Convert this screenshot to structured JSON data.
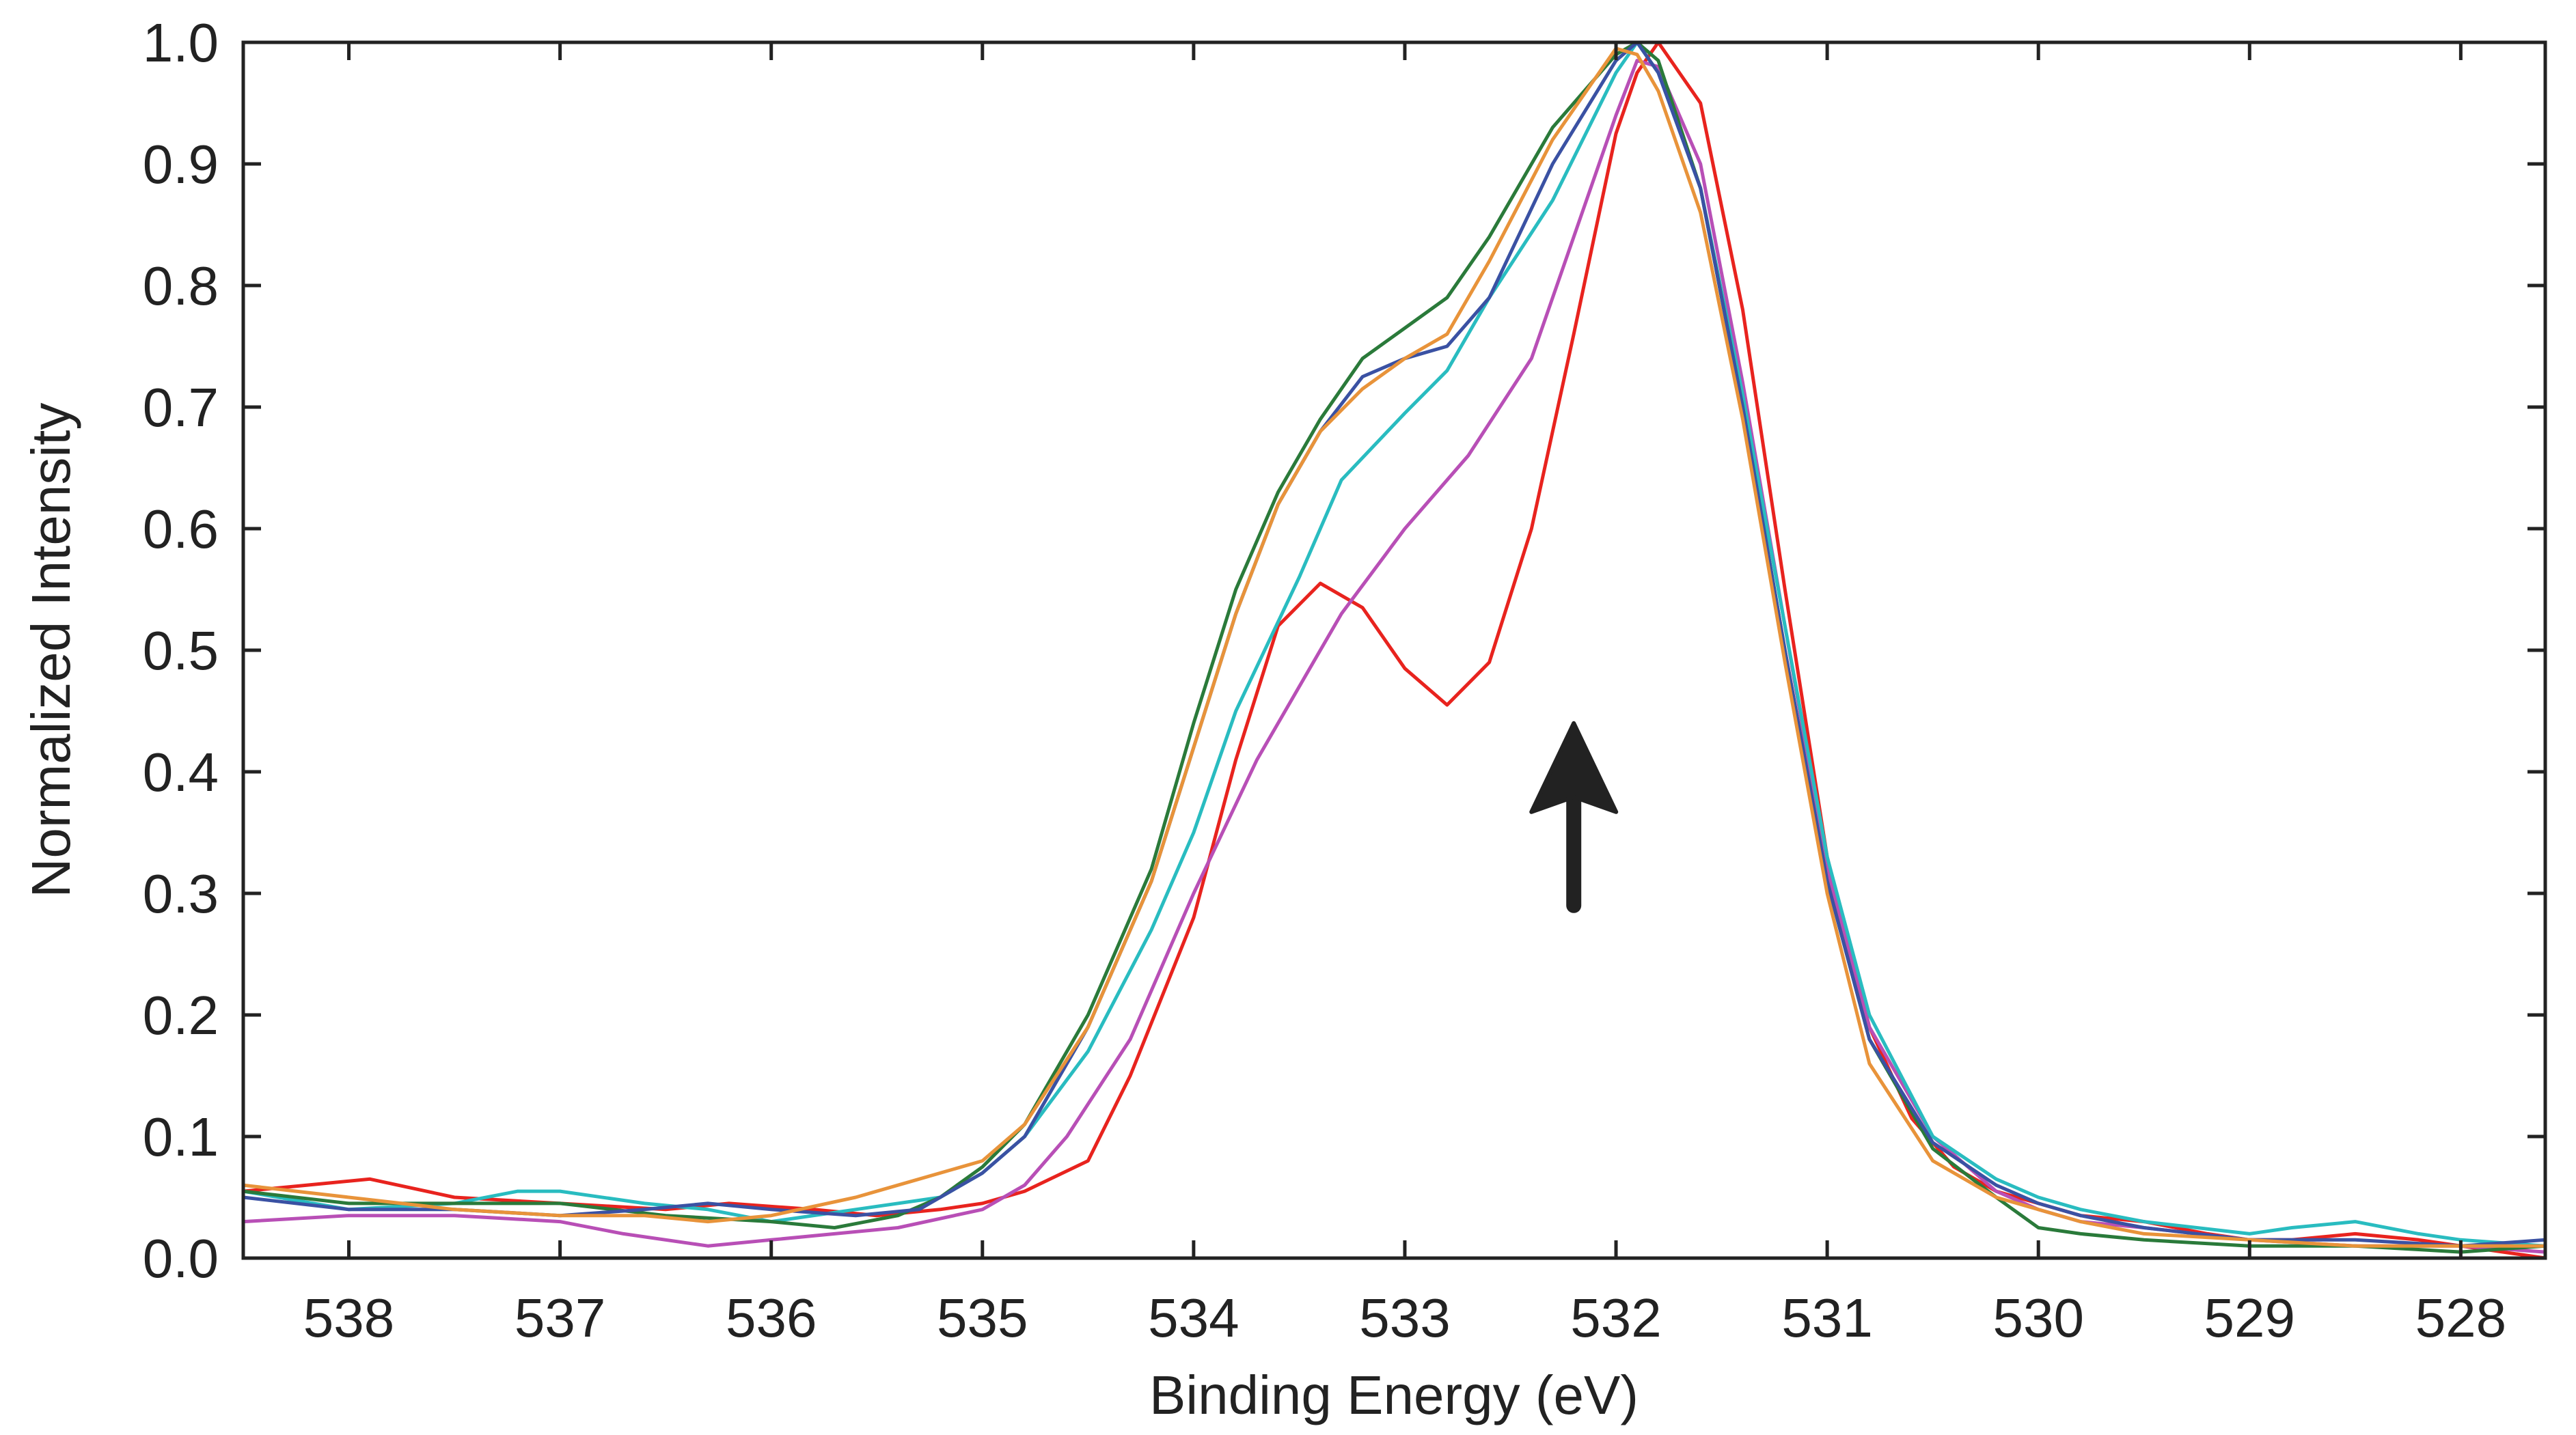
{
  "chart_data": {
    "type": "line",
    "title": "",
    "xlabel": "Binding Energy (eV)",
    "ylabel": "Normalized Intensity",
    "xlim": [
      538.5,
      527.6
    ],
    "ylim": [
      0.0,
      1.0
    ],
    "x_reversed": true,
    "grid": false,
    "legend": "none",
    "xticks": [
      538,
      537,
      536,
      535,
      534,
      533,
      532,
      531,
      530,
      529,
      528
    ],
    "xtick_labels": [
      "538",
      "537",
      "536",
      "535",
      "534",
      "533",
      "532",
      "531",
      "530",
      "529",
      "528"
    ],
    "yticks": [
      0.0,
      0.1,
      0.2,
      0.3,
      0.4,
      0.5,
      0.6,
      0.7,
      0.8,
      0.9,
      1.0
    ],
    "ytick_labels": [
      "0.0",
      "0.1",
      "0.2",
      "0.3",
      "0.4",
      "0.5",
      "0.6",
      "0.7",
      "0.8",
      "0.9",
      "1.0"
    ],
    "annotations": [
      {
        "type": "arrow",
        "direction": "up",
        "x": 532.2,
        "y_start": 0.29,
        "y_end": 0.44,
        "color": "#222222"
      }
    ],
    "series": [
      {
        "name": "red",
        "color": "#e8231e",
        "x": [
          538.5,
          538.2,
          537.9,
          537.5,
          537.0,
          536.5,
          536.2,
          535.8,
          535.5,
          535.2,
          535.0,
          534.8,
          534.5,
          534.3,
          534.0,
          533.8,
          533.6,
          533.4,
          533.2,
          533.0,
          532.8,
          532.6,
          532.4,
          532.2,
          532.0,
          531.9,
          531.8,
          531.6,
          531.4,
          531.2,
          531.0,
          530.8,
          530.6,
          530.4,
          530.2,
          530.0,
          529.8,
          529.5,
          529.2,
          529.0,
          528.8,
          528.5,
          528.2,
          528.0,
          527.6
        ],
        "y": [
          0.055,
          0.06,
          0.065,
          0.05,
          0.045,
          0.04,
          0.045,
          0.04,
          0.035,
          0.04,
          0.045,
          0.055,
          0.08,
          0.15,
          0.28,
          0.41,
          0.52,
          0.555,
          0.535,
          0.485,
          0.455,
          0.49,
          0.6,
          0.76,
          0.925,
          0.975,
          1.0,
          0.95,
          0.78,
          0.55,
          0.33,
          0.19,
          0.115,
          0.075,
          0.055,
          0.045,
          0.035,
          0.03,
          0.02,
          0.015,
          0.015,
          0.02,
          0.015,
          0.01,
          0.0
        ]
      },
      {
        "name": "magenta",
        "color": "#b84fb6",
        "x": [
          538.5,
          538.0,
          537.5,
          537.0,
          536.7,
          536.3,
          536.0,
          535.7,
          535.4,
          535.0,
          534.8,
          534.6,
          534.3,
          534.0,
          533.7,
          533.5,
          533.3,
          533.0,
          532.7,
          532.4,
          532.2,
          532.0,
          531.9,
          531.8,
          531.6,
          531.4,
          531.2,
          531.0,
          530.8,
          530.5,
          530.2,
          530.0,
          529.8,
          529.5,
          529.0,
          528.5,
          528.0,
          527.6
        ],
        "y": [
          0.03,
          0.035,
          0.035,
          0.03,
          0.02,
          0.01,
          0.015,
          0.02,
          0.025,
          0.04,
          0.06,
          0.1,
          0.18,
          0.3,
          0.41,
          0.47,
          0.53,
          0.6,
          0.66,
          0.74,
          0.84,
          0.94,
          0.985,
          0.98,
          0.9,
          0.72,
          0.52,
          0.32,
          0.19,
          0.1,
          0.055,
          0.04,
          0.03,
          0.025,
          0.015,
          0.01,
          0.01,
          0.005
        ]
      },
      {
        "name": "cyan",
        "color": "#29bcc0",
        "x": [
          538.5,
          538.0,
          537.5,
          537.2,
          537.0,
          536.6,
          536.3,
          536.0,
          535.6,
          535.2,
          535.0,
          534.8,
          534.5,
          534.2,
          534.0,
          533.8,
          533.5,
          533.3,
          533.0,
          532.8,
          532.6,
          532.3,
          532.0,
          531.9,
          531.8,
          531.6,
          531.4,
          531.2,
          531.0,
          530.8,
          530.5,
          530.2,
          530.0,
          529.8,
          529.5,
          529.0,
          528.8,
          528.5,
          528.2,
          528.0,
          527.6
        ],
        "y": [
          0.055,
          0.04,
          0.045,
          0.055,
          0.055,
          0.045,
          0.04,
          0.03,
          0.04,
          0.05,
          0.07,
          0.1,
          0.17,
          0.27,
          0.35,
          0.45,
          0.56,
          0.64,
          0.695,
          0.73,
          0.79,
          0.87,
          0.975,
          1.0,
          0.975,
          0.88,
          0.71,
          0.52,
          0.33,
          0.2,
          0.1,
          0.065,
          0.05,
          0.04,
          0.03,
          0.02,
          0.025,
          0.03,
          0.02,
          0.015,
          0.01
        ]
      },
      {
        "name": "green",
        "color": "#2a7a3a",
        "x": [
          538.5,
          538.0,
          537.5,
          537.0,
          536.5,
          536.0,
          535.7,
          535.4,
          535.2,
          535.0,
          534.8,
          534.5,
          534.2,
          534.0,
          533.8,
          533.6,
          533.4,
          533.2,
          533.0,
          532.8,
          532.6,
          532.3,
          532.0,
          531.9,
          531.8,
          531.6,
          531.4,
          531.2,
          531.0,
          530.8,
          530.5,
          530.2,
          530.0,
          529.8,
          529.5,
          529.0,
          528.5,
          528.0,
          527.6
        ],
        "y": [
          0.055,
          0.045,
          0.045,
          0.045,
          0.035,
          0.03,
          0.025,
          0.035,
          0.05,
          0.075,
          0.11,
          0.2,
          0.32,
          0.44,
          0.55,
          0.63,
          0.69,
          0.74,
          0.765,
          0.79,
          0.84,
          0.93,
          0.99,
          1.0,
          0.985,
          0.88,
          0.7,
          0.5,
          0.31,
          0.18,
          0.09,
          0.05,
          0.025,
          0.02,
          0.015,
          0.01,
          0.01,
          0.005,
          0.01
        ]
      },
      {
        "name": "blue",
        "color": "#3a51a3",
        "x": [
          538.5,
          538.0,
          537.5,
          537.0,
          536.6,
          536.3,
          536.0,
          535.6,
          535.3,
          535.0,
          534.8,
          534.5,
          534.2,
          534.0,
          533.8,
          533.6,
          533.4,
          533.2,
          533.0,
          532.8,
          532.6,
          532.3,
          532.0,
          531.9,
          531.8,
          531.6,
          531.4,
          531.2,
          531.0,
          530.8,
          530.5,
          530.2,
          530.0,
          529.8,
          529.5,
          529.0,
          528.5,
          528.0,
          527.6
        ],
        "y": [
          0.05,
          0.04,
          0.04,
          0.035,
          0.04,
          0.045,
          0.04,
          0.035,
          0.04,
          0.07,
          0.1,
          0.19,
          0.31,
          0.42,
          0.53,
          0.62,
          0.68,
          0.725,
          0.74,
          0.75,
          0.79,
          0.9,
          0.985,
          1.0,
          0.975,
          0.88,
          0.7,
          0.5,
          0.31,
          0.18,
          0.095,
          0.06,
          0.045,
          0.035,
          0.025,
          0.015,
          0.015,
          0.01,
          0.015
        ]
      },
      {
        "name": "orange",
        "color": "#e8933a",
        "x": [
          538.5,
          538.0,
          537.5,
          537.0,
          536.6,
          536.3,
          536.0,
          535.6,
          535.3,
          535.0,
          534.8,
          534.5,
          534.2,
          534.0,
          533.8,
          533.6,
          533.4,
          533.2,
          533.0,
          532.8,
          532.6,
          532.3,
          532.0,
          531.9,
          531.8,
          531.6,
          531.4,
          531.2,
          531.0,
          530.8,
          530.5,
          530.2,
          530.0,
          529.8,
          529.5,
          529.0,
          528.5,
          528.0,
          527.6
        ],
        "y": [
          0.06,
          0.05,
          0.04,
          0.035,
          0.035,
          0.03,
          0.035,
          0.05,
          0.065,
          0.08,
          0.11,
          0.19,
          0.31,
          0.42,
          0.53,
          0.62,
          0.68,
          0.715,
          0.74,
          0.76,
          0.82,
          0.92,
          0.995,
          0.99,
          0.96,
          0.86,
          0.69,
          0.49,
          0.3,
          0.16,
          0.08,
          0.05,
          0.04,
          0.03,
          0.02,
          0.015,
          0.01,
          0.01,
          0.01
        ]
      }
    ]
  }
}
